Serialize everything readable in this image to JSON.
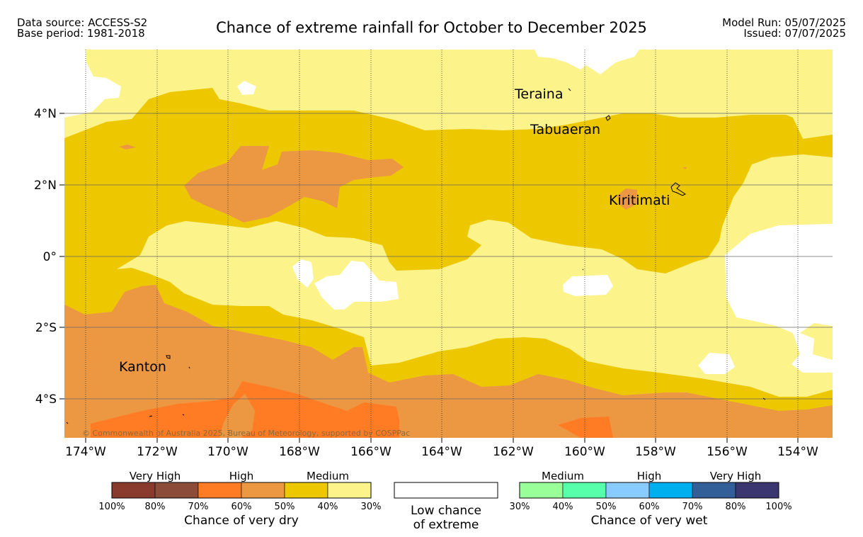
{
  "header": {
    "data_source": "Data source: ACCESS-S2",
    "base_period": "Base period: 1981-2018",
    "title": "Chance of extreme rainfall for October to December 2025",
    "model_run": "Model Run: 05/07/2025",
    "issued": "Issued: 07/07/2025"
  },
  "map": {
    "latitude_labels": [
      "4°N",
      "2°N",
      "0°",
      "2°S",
      "4°S"
    ],
    "longitude_labels": [
      "174°W",
      "172°W",
      "170°W",
      "168°W",
      "166°W",
      "164°W",
      "162°W",
      "160°W",
      "158°W",
      "156°W",
      "154°W"
    ],
    "places": {
      "teraina": "Teraina",
      "tabuaeran": "Tabuaeran",
      "kiritimati": "Kiritimati",
      "kanton": "Kanton"
    },
    "copyright": "© Commonwealth of Australia 2025, Bureau of Meteorology, supported by COSPPac",
    "colors": {
      "very_high_dry_1": "#8b3a2e",
      "very_high_dry_2": "#8b4c39",
      "high_dry_1": "#ff7c25",
      "high_dry_2": "#ec9843",
      "medium_dry_1": "#edc700",
      "medium_dry_2": "#fcf48b",
      "low_chance": "#ffffff",
      "medium_wet_1": "#99ff99",
      "medium_wet_2": "#58ffaa",
      "high_wet_1": "#88ccff",
      "high_wet_2": "#00b0ee",
      "very_high_wet_1": "#335f99",
      "very_high_wet_2": "#3b3670"
    }
  },
  "legend": {
    "dry": {
      "groups": [
        "Very High",
        "High",
        "Medium"
      ],
      "ticks": [
        "100%",
        "80%",
        "70%",
        "60%",
        "50%",
        "40%",
        "30%"
      ],
      "caption": "Chance of very dry"
    },
    "low": {
      "caption_line1": "Low chance",
      "caption_line2": "of extreme"
    },
    "wet": {
      "groups": [
        "Medium",
        "High",
        "Very High"
      ],
      "ticks": [
        "30%",
        "40%",
        "50%",
        "60%",
        "70%",
        "80%",
        "100%"
      ],
      "caption": "Chance of very wet"
    }
  }
}
